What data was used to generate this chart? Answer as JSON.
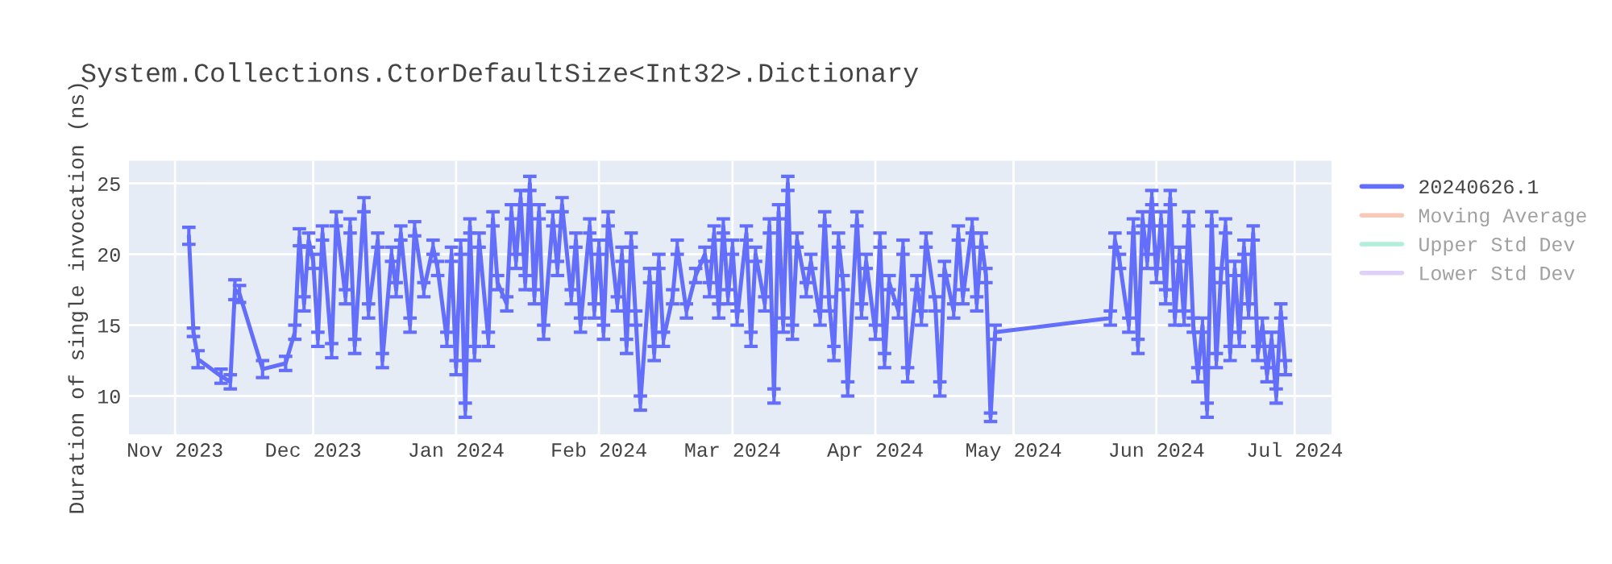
{
  "chart_data": {
    "type": "line",
    "title": "System.Collections.CtorDefaultSize<Int32>.Dictionary",
    "ylabel": "Duration of single invocation (ns)",
    "x": [
      "2023-11-04",
      "2023-11-05",
      "2023-11-06",
      "2023-11-11",
      "2023-11-13",
      "2023-11-14",
      "2023-11-15",
      "2023-11-20",
      "2023-11-25",
      "2023-11-27",
      "2023-11-28",
      "2023-11-29",
      "2023-11-30",
      "2023-12-01",
      "2023-12-02",
      "2023-12-03",
      "2023-12-05",
      "2023-12-06",
      "2023-12-08",
      "2023-12-09",
      "2023-12-10",
      "2023-12-12",
      "2023-12-13",
      "2023-12-15",
      "2023-12-16",
      "2023-12-18",
      "2023-12-19",
      "2023-12-20",
      "2023-12-22",
      "2023-12-23",
      "2023-12-25",
      "2023-12-27",
      "2023-12-28",
      "2023-12-30",
      "2023-12-31",
      "2024-01-01",
      "2024-01-02",
      "2024-01-03",
      "2024-01-04",
      "2024-01-05",
      "2024-01-06",
      "2024-01-08",
      "2024-01-09",
      "2024-01-10",
      "2024-01-12",
      "2024-01-13",
      "2024-01-14",
      "2024-01-15",
      "2024-01-16",
      "2024-01-17",
      "2024-01-18",
      "2024-01-19",
      "2024-01-20",
      "2024-01-22",
      "2024-01-23",
      "2024-01-24",
      "2024-01-26",
      "2024-01-27",
      "2024-01-28",
      "2024-01-30",
      "2024-01-31",
      "2024-02-01",
      "2024-02-02",
      "2024-02-03",
      "2024-02-05",
      "2024-02-06",
      "2024-02-07",
      "2024-02-08",
      "2024-02-09",
      "2024-02-10",
      "2024-02-12",
      "2024-02-13",
      "2024-02-14",
      "2024-02-15",
      "2024-02-17",
      "2024-02-18",
      "2024-02-20",
      "2024-02-22",
      "2024-02-24",
      "2024-02-25",
      "2024-02-26",
      "2024-02-27",
      "2024-02-28",
      "2024-02-29",
      "2024-03-01",
      "2024-03-02",
      "2024-03-04",
      "2024-03-05",
      "2024-03-06",
      "2024-03-08",
      "2024-03-09",
      "2024-03-10",
      "2024-03-11",
      "2024-03-12",
      "2024-03-13",
      "2024-03-14",
      "2024-03-15",
      "2024-03-17",
      "2024-03-18",
      "2024-03-20",
      "2024-03-21",
      "2024-03-22",
      "2024-03-23",
      "2024-03-24",
      "2024-03-25",
      "2024-03-26",
      "2024-03-28",
      "2024-03-29",
      "2024-03-30",
      "2024-04-01",
      "2024-04-02",
      "2024-04-03",
      "2024-04-04",
      "2024-04-06",
      "2024-04-07",
      "2024-04-08",
      "2024-04-10",
      "2024-04-11",
      "2024-04-12",
      "2024-04-14",
      "2024-04-15",
      "2024-04-16",
      "2024-04-18",
      "2024-04-19",
      "2024-04-20",
      "2024-04-22",
      "2024-04-23",
      "2024-04-24",
      "2024-04-25",
      "2024-04-26",
      "2024-04-27",
      "2024-05-22",
      "2024-05-23",
      "2024-05-24",
      "2024-05-26",
      "2024-05-27",
      "2024-05-28",
      "2024-05-29",
      "2024-05-30",
      "2024-05-31",
      "2024-06-01",
      "2024-06-02",
      "2024-06-03",
      "2024-06-04",
      "2024-06-05",
      "2024-06-06",
      "2024-06-07",
      "2024-06-08",
      "2024-06-09",
      "2024-06-10",
      "2024-06-11",
      "2024-06-12",
      "2024-06-13",
      "2024-06-14",
      "2024-06-15",
      "2024-06-16",
      "2024-06-17",
      "2024-06-18",
      "2024-06-19",
      "2024-06-20",
      "2024-06-21",
      "2024-06-22",
      "2024-06-23",
      "2024-06-24",
      "2024-06-25",
      "2024-06-26",
      "2024-06-27",
      "2024-06-28",
      "2024-06-29"
    ],
    "series": [
      {
        "name": "20240626.1",
        "color": "#636efa",
        "values": [
          21.3,
          14.5,
          12.6,
          11.4,
          11.0,
          17.5,
          17.2,
          11.9,
          12.3,
          14.5,
          21.2,
          16.5,
          21.0,
          19.5,
          14.0,
          21.5,
          13.2,
          22.5,
          17.0,
          22.0,
          13.5,
          23.5,
          16.0,
          21.0,
          12.5,
          20.0,
          17.5,
          21.5,
          15.0,
          21.8,
          17.5,
          20.5,
          19.0,
          14.0,
          20.0,
          12.0,
          20.5,
          9.0,
          22.0,
          13.0,
          21.0,
          14.0,
          22.5,
          18.0,
          16.5,
          23.0,
          19.5,
          24.0,
          18.0,
          25.0,
          17.0,
          23.0,
          14.5,
          22.5,
          19.0,
          23.5,
          17.0,
          21.0,
          15.0,
          22.0,
          16.0,
          20.5,
          14.5,
          22.5,
          16.5,
          20.0,
          13.5,
          21.0,
          15.5,
          9.5,
          18.5,
          13.0,
          19.5,
          14.0,
          17.0,
          20.5,
          16.0,
          18.5,
          20.0,
          17.5,
          21.5,
          16.0,
          22.0,
          17.0,
          20.5,
          15.5,
          21.5,
          14.0,
          20.0,
          16.5,
          22.0,
          10.0,
          23.0,
          15.0,
          25.0,
          14.5,
          21.0,
          17.5,
          19.5,
          15.5,
          22.5,
          16.5,
          13.0,
          21.0,
          18.0,
          10.5,
          22.5,
          16.0,
          19.5,
          14.5,
          21.0,
          12.5,
          18.0,
          16.0,
          20.5,
          11.5,
          18.0,
          15.5,
          21.0,
          16.5,
          10.5,
          19.0,
          16.0,
          21.5,
          17.0,
          22.0,
          16.5,
          21.0,
          18.5,
          8.5,
          14.5,
          15.5,
          21.0,
          19.5,
          15.0,
          22.0,
          13.5,
          22.5,
          19.5,
          24.0,
          18.5,
          22.5,
          17.0,
          24.0,
          15.5,
          20.0,
          15.5,
          22.5,
          15.0,
          11.5,
          15.0,
          9.0,
          22.5,
          12.5,
          18.5,
          22.0,
          13.0,
          19.0,
          14.0,
          20.5,
          16.0,
          21.5,
          13.0,
          15.0,
          11.5,
          14.0,
          10.0,
          16.0,
          12.0
        ],
        "errors": [
          0.6,
          0.3,
          0.6,
          0.5,
          0.5,
          0.7,
          0.6,
          0.6,
          0.5,
          0.5,
          0.6,
          0.5,
          0.5,
          0.5,
          0.5,
          0.5,
          0.5,
          0.5,
          0.5,
          0.5,
          0.5,
          0.5,
          0.5,
          0.5,
          0.5,
          0.5,
          0.5,
          0.5,
          0.5,
          0.5,
          0.5,
          0.5,
          0.5,
          0.5,
          0.5,
          0.5,
          0.5,
          0.5,
          0.5,
          0.5,
          0.5,
          0.5,
          0.5,
          0.5,
          0.5,
          0.5,
          0.5,
          0.5,
          0.5,
          0.5,
          0.5,
          0.5,
          0.5,
          0.5,
          0.5,
          0.5,
          0.5,
          0.5,
          0.5,
          0.5,
          0.5,
          0.5,
          0.5,
          0.5,
          0.5,
          0.5,
          0.5,
          0.5,
          0.5,
          0.5,
          0.5,
          0.5,
          0.5,
          0.5,
          0.5,
          0.5,
          0.5,
          0.5,
          0.5,
          0.5,
          0.5,
          0.5,
          0.5,
          0.5,
          0.5,
          0.5,
          0.5,
          0.5,
          0.5,
          0.5,
          0.5,
          0.5,
          0.5,
          0.5,
          0.5,
          0.5,
          0.5,
          0.5,
          0.5,
          0.5,
          0.5,
          0.5,
          0.5,
          0.5,
          0.5,
          0.5,
          0.5,
          0.5,
          0.5,
          0.5,
          0.5,
          0.5,
          0.5,
          0.5,
          0.5,
          0.5,
          0.5,
          0.5,
          0.5,
          0.5,
          0.5,
          0.5,
          0.5,
          0.5,
          0.5,
          0.5,
          0.5,
          0.5,
          0.5,
          0.3,
          0.5,
          0.5,
          0.5,
          0.5,
          0.5,
          0.5,
          0.5,
          0.5,
          0.5,
          0.5,
          0.5,
          0.5,
          0.5,
          0.5,
          0.5,
          0.5,
          0.5,
          0.5,
          0.5,
          0.5,
          0.5,
          0.5,
          0.5,
          0.5,
          0.5,
          0.5,
          0.5,
          0.5,
          0.5,
          0.5,
          0.5,
          0.5,
          0.5,
          0.5,
          0.5,
          0.5,
          0.5,
          0.5,
          0.5
        ]
      },
      {
        "name": "Moving Average",
        "color": "#f4a58a",
        "values": [
          null,
          null,
          null,
          null,
          null,
          null,
          null,
          null,
          null,
          null,
          null,
          null,
          null,
          null,
          null,
          null,
          null,
          null,
          null,
          null,
          null,
          null,
          null,
          null,
          null,
          null,
          null,
          null,
          null,
          null,
          null,
          null,
          null,
          null,
          null,
          null,
          null,
          null,
          null,
          null,
          null,
          null,
          null,
          null,
          null,
          null,
          null,
          null,
          null,
          null,
          null,
          null,
          null,
          null,
          null,
          null,
          null,
          null,
          null,
          null,
          null,
          null,
          null,
          null,
          null,
          null,
          null,
          null,
          null,
          null,
          null,
          null,
          null,
          null,
          null,
          null,
          null,
          null,
          null,
          null,
          null,
          null,
          null,
          null,
          null,
          null,
          null,
          null,
          null,
          null,
          null,
          null,
          null,
          null,
          null,
          null,
          null,
          null,
          null,
          null,
          null,
          null,
          null,
          null,
          null,
          null,
          null,
          null,
          null,
          null,
          null,
          null,
          null,
          null,
          null,
          null,
          null,
          null,
          null,
          null,
          null,
          null,
          null,
          null,
          null,
          null,
          null,
          null,
          null,
          null,
          null,
          null,
          null,
          null,
          null,
          null,
          null,
          null,
          null,
          null,
          null,
          null,
          null,
          null,
          null,
          null,
          null,
          null,
          null,
          null,
          null,
          null,
          null,
          null,
          null,
          null,
          null,
          null,
          null,
          null,
          null,
          null,
          null,
          null,
          null,
          null,
          null,
          null,
          null
        ]
      },
      {
        "name": "Upper Std Dev",
        "color": "#7ee3c0",
        "values": [
          null,
          null,
          null,
          null,
          null,
          null,
          null,
          null,
          null,
          null,
          null,
          null,
          null,
          null,
          null,
          null,
          null,
          null,
          null,
          null,
          null,
          null,
          null,
          null,
          null,
          null,
          null,
          null,
          null,
          null,
          null,
          null,
          null,
          null,
          null,
          null,
          null,
          null,
          null,
          null,
          null,
          null,
          null,
          null,
          null,
          null,
          null,
          null,
          null,
          null,
          null,
          null,
          null,
          null,
          null,
          null,
          null,
          null,
          null,
          null,
          null,
          null,
          null,
          null,
          null,
          null,
          null,
          null,
          null,
          null,
          null,
          null,
          null,
          null,
          null,
          null,
          null,
          null,
          null,
          null,
          null,
          null,
          null,
          null,
          null,
          null,
          null,
          null,
          null,
          null,
          null,
          null,
          null,
          null,
          null,
          null,
          null,
          null,
          null,
          null,
          null,
          null,
          null,
          null,
          null,
          null,
          null,
          null,
          null,
          null,
          null,
          null,
          null,
          null,
          null,
          null,
          null,
          null,
          null,
          null,
          null,
          null,
          null,
          null,
          null,
          null,
          null,
          null,
          null,
          null,
          null,
          null,
          null,
          null,
          null,
          null,
          null,
          null,
          null,
          null,
          null,
          null,
          null,
          null,
          null,
          null,
          null,
          null,
          null,
          null,
          null,
          null,
          null,
          null,
          null,
          null,
          null,
          null,
          null,
          null,
          null,
          null,
          null,
          null,
          null,
          null,
          null,
          null,
          null
        ]
      },
      {
        "name": "Lower Std Dev",
        "color": "#c9b1f5",
        "values": [
          null,
          null,
          null,
          null,
          null,
          null,
          null,
          null,
          null,
          null,
          null,
          null,
          null,
          null,
          null,
          null,
          null,
          null,
          null,
          null,
          null,
          null,
          null,
          null,
          null,
          null,
          null,
          null,
          null,
          null,
          null,
          null,
          null,
          null,
          null,
          null,
          null,
          null,
          null,
          null,
          null,
          null,
          null,
          null,
          null,
          null,
          null,
          null,
          null,
          null,
          null,
          null,
          null,
          null,
          null,
          null,
          null,
          null,
          null,
          null,
          null,
          null,
          null,
          null,
          null,
          null,
          null,
          null,
          null,
          null,
          null,
          null,
          null,
          null,
          null,
          null,
          null,
          null,
          null,
          null,
          null,
          null,
          null,
          null,
          null,
          null,
          null,
          null,
          null,
          null,
          null,
          null,
          null,
          null,
          null,
          null,
          null,
          null,
          null,
          null,
          null,
          null,
          null,
          null,
          null,
          null,
          null,
          null,
          null,
          null,
          null,
          null,
          null,
          null,
          null,
          null,
          null,
          null,
          null,
          null,
          null,
          null,
          null,
          null,
          null,
          null,
          null,
          null,
          null,
          null,
          null,
          null,
          null,
          null,
          null,
          null,
          null,
          null,
          null,
          null,
          null,
          null,
          null,
          null,
          null,
          null,
          null,
          null,
          null,
          null,
          null,
          null,
          null,
          null,
          null,
          null,
          null,
          null,
          null,
          null,
          null,
          null,
          null,
          null,
          null,
          null,
          null,
          null,
          null
        ]
      }
    ],
    "xlim": [
      "2023-10-22",
      "2024-07-09"
    ],
    "xticks": [
      {
        "value": "2023-11-01",
        "label": "Nov 2023"
      },
      {
        "value": "2023-12-01",
        "label": "Dec 2023"
      },
      {
        "value": "2024-01-01",
        "label": "Jan 2024"
      },
      {
        "value": "2024-02-01",
        "label": "Feb 2024"
      },
      {
        "value": "2024-03-01",
        "label": "Mar 2024"
      },
      {
        "value": "2024-04-01",
        "label": "Apr 2024"
      },
      {
        "value": "2024-05-01",
        "label": "May 2024"
      },
      {
        "value": "2024-06-01",
        "label": "Jun 2024"
      },
      {
        "value": "2024-07-01",
        "label": "Jul 2024"
      }
    ],
    "ylim": [
      7.3,
      26.6
    ],
    "yticks": [
      10,
      15,
      20,
      25
    ],
    "grid": true,
    "legend": "top right",
    "marker": "none",
    "line_style": "solid"
  }
}
